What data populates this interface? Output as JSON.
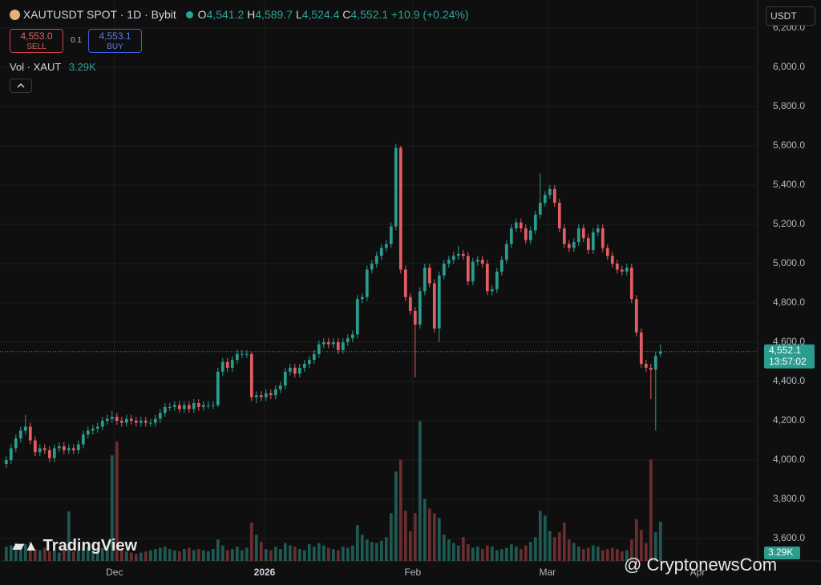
{
  "header": {
    "symbol": "XAUTUSDT SPOT · 1D · Bybit",
    "ohlc": [
      {
        "key": "O",
        "label": "4,541.2"
      },
      {
        "key": "H",
        "label": "4,589.7"
      },
      {
        "key": "L",
        "label": "4,524.4"
      },
      {
        "key": "C",
        "label": "4,552.1"
      }
    ],
    "change": "+10.9 (+0.24%)",
    "sell_price": "4,553.0",
    "sell": "SELL",
    "spread": "0.1",
    "buy_price": "4,553.1",
    "buy": "BUY",
    "volume_title": "Vol · XAUT",
    "currency": "USDT",
    "timer": "13:57:02",
    "watermarks": [
      "TradingView",
      "@ CryptonewsCom"
    ]
  },
  "chart_data": {
    "type": "candlestick",
    "categories": [
      null,
      null,
      null,
      null,
      null,
      null,
      null,
      null,
      null,
      null,
      null,
      null,
      null,
      null,
      null,
      null,
      null,
      null,
      null,
      null,
      null,
      null,
      null,
      null,
      null,
      null,
      null,
      null,
      null,
      null,
      null,
      null,
      null,
      null,
      null,
      null,
      null,
      null,
      null,
      null,
      null,
      null,
      null,
      null,
      null,
      null,
      null,
      null,
      null,
      null,
      null,
      null,
      null,
      null,
      null,
      null,
      null,
      null,
      null,
      null,
      null,
      null,
      null,
      null,
      null,
      null,
      null,
      null,
      null,
      null,
      null,
      null,
      null,
      null,
      null,
      null,
      null,
      null,
      null,
      null,
      null,
      null,
      null,
      null,
      null,
      null,
      null,
      null,
      null,
      null,
      null,
      null,
      null,
      null,
      null,
      null,
      null,
      null,
      null,
      null,
      null,
      null,
      null,
      null,
      null,
      null,
      null,
      null,
      null,
      null,
      null,
      null,
      null,
      null,
      null,
      null,
      null,
      null,
      null,
      null,
      null,
      null,
      null,
      null,
      null,
      null,
      null,
      null,
      null,
      null,
      null,
      null,
      null,
      null,
      null,
      null,
      null
    ],
    "open": [
      3980,
      4000,
      4060,
      4110,
      4150,
      4170,
      4100,
      4040,
      4060,
      4050,
      4010,
      4060,
      4070,
      4050,
      4060,
      4050,
      4080,
      4130,
      4150,
      4160,
      4170,
      4200,
      4210,
      4220,
      4200,
      4190,
      4210,
      4200,
      4190,
      4200,
      4190,
      4190,
      4210,
      4240,
      4270,
      4270,
      4280,
      4260,
      4280,
      4260,
      4290,
      4270,
      4280,
      4280,
      4280,
      4450,
      4500,
      4470,
      4510,
      4540,
      4540,
      4540,
      4320,
      4330,
      4320,
      4340,
      4330,
      4360,
      4380,
      4450,
      4470,
      4440,
      4470,
      4490,
      4510,
      4540,
      4590,
      4600,
      4590,
      4600,
      4560,
      4600,
      4620,
      4640,
      4820,
      4830,
      4970,
      5000,
      5040,
      5080,
      5100,
      5190,
      5590,
      4970,
      4830,
      4760,
      4690,
      4860,
      4980,
      4900,
      4670,
      4940,
      5000,
      5020,
      5040,
      5050,
      5040,
      4910,
      5010,
      5020,
      5000,
      4860,
      4870,
      4960,
      5020,
      5100,
      5180,
      5210,
      5180,
      5120,
      5170,
      5250,
      5310,
      5350,
      5380,
      5310,
      5180,
      5100,
      5080,
      5110,
      5180,
      5130,
      5070,
      5160,
      5180,
      5080,
      5040,
      5000,
      4970,
      4960,
      4980,
      4820,
      4650,
      4490,
      4470,
      4460,
      4541.2
    ],
    "high": [
      4020,
      4080,
      4130,
      4170,
      4230,
      4190,
      4120,
      4080,
      4080,
      4070,
      4080,
      4090,
      4090,
      4080,
      4080,
      4100,
      4150,
      4170,
      4180,
      4190,
      4220,
      4230,
      4250,
      4240,
      4220,
      4230,
      4230,
      4220,
      4220,
      4220,
      4210,
      4230,
      4260,
      4290,
      4290,
      4300,
      4300,
      4300,
      4300,
      4310,
      4310,
      4300,
      4300,
      4300,
      4470,
      4520,
      4520,
      4530,
      4560,
      4560,
      4560,
      4550,
      4350,
      4350,
      4360,
      4360,
      4380,
      4400,
      4470,
      4490,
      4490,
      4490,
      4510,
      4530,
      4560,
      4610,
      4620,
      4620,
      4620,
      4620,
      4620,
      4640,
      4660,
      4840,
      4850,
      4990,
      5020,
      5060,
      5100,
      5120,
      5210,
      5610,
      5600,
      4990,
      4850,
      4780,
      4880,
      5000,
      5000,
      4920,
      4960,
      5020,
      5040,
      5060,
      5090,
      5070,
      5060,
      5030,
      5040,
      5040,
      5020,
      4890,
      4980,
      5040,
      5120,
      5200,
      5230,
      5230,
      5200,
      5190,
      5270,
      5460,
      5370,
      5400,
      5400,
      5330,
      5200,
      5120,
      5130,
      5200,
      5200,
      5150,
      5180,
      5200,
      5200,
      5100,
      5060,
      5020,
      4990,
      5000,
      5000,
      4840,
      4670,
      4510,
      4490,
      4550,
      4589.7
    ],
    "low": [
      3960,
      3980,
      4040,
      4090,
      4130,
      4080,
      4020,
      4020,
      4030,
      3990,
      3990,
      4040,
      4030,
      4030,
      4030,
      4030,
      4060,
      4110,
      4130,
      4140,
      4150,
      4180,
      4190,
      4180,
      4170,
      4170,
      4180,
      4170,
      4170,
      4170,
      4170,
      4170,
      4190,
      4220,
      4250,
      4250,
      4240,
      4240,
      4240,
      4240,
      4250,
      4250,
      4260,
      4260,
      4270,
      4430,
      4450,
      4450,
      4490,
      4520,
      4520,
      4300,
      4290,
      4300,
      4300,
      4310,
      4310,
      4340,
      4360,
      4430,
      4420,
      4420,
      4450,
      4470,
      4490,
      4520,
      4570,
      4570,
      4570,
      4540,
      4540,
      4580,
      4600,
      4620,
      4800,
      4810,
      4950,
      4980,
      5020,
      5060,
      5080,
      5170,
      4950,
      4810,
      4740,
      4420,
      4670,
      4840,
      4880,
      4650,
      4600,
      4920,
      4980,
      5000,
      5020,
      5020,
      4890,
      4890,
      4990,
      4980,
      4840,
      4840,
      4850,
      4940,
      5000,
      5080,
      5160,
      5160,
      5100,
      5100,
      5150,
      5230,
      5290,
      5330,
      5290,
      5160,
      5080,
      5060,
      5060,
      5090,
      5110,
      5050,
      5050,
      5140,
      5060,
      5020,
      4980,
      4950,
      4940,
      4940,
      4800,
      4630,
      4470,
      4450,
      4310,
      4150,
      4524.4
    ],
    "close": [
      4000,
      4060,
      4110,
      4150,
      4170,
      4100,
      4040,
      4060,
      4050,
      4010,
      4060,
      4070,
      4050,
      4060,
      4050,
      4080,
      4130,
      4150,
      4160,
      4170,
      4200,
      4210,
      4220,
      4200,
      4190,
      4210,
      4200,
      4190,
      4200,
      4190,
      4190,
      4210,
      4240,
      4270,
      4270,
      4280,
      4260,
      4280,
      4260,
      4290,
      4270,
      4280,
      4280,
      4280,
      4450,
      4500,
      4470,
      4510,
      4540,
      4540,
      4540,
      4320,
      4330,
      4320,
      4340,
      4330,
      4360,
      4380,
      4450,
      4470,
      4440,
      4470,
      4490,
      4510,
      4540,
      4590,
      4600,
      4590,
      4600,
      4560,
      4600,
      4620,
      4640,
      4820,
      4830,
      4970,
      5000,
      5040,
      5080,
      5100,
      5190,
      5590,
      4970,
      4830,
      4760,
      4690,
      4860,
      4980,
      4900,
      4670,
      4940,
      5000,
      5020,
      5040,
      5050,
      5040,
      4910,
      5010,
      5020,
      5000,
      4860,
      4870,
      4960,
      5020,
      5100,
      5180,
      5210,
      5180,
      5120,
      5170,
      5250,
      5310,
      5350,
      5380,
      5310,
      5180,
      5100,
      5080,
      5110,
      5180,
      5130,
      5070,
      5160,
      5180,
      5080,
      5040,
      5000,
      4970,
      4960,
      4980,
      4820,
      4650,
      4490,
      4470,
      4460,
      4530,
      4552.1
    ],
    "volume": [
      1200,
      1300,
      1500,
      1100,
      1400,
      1600,
      1000,
      900,
      1100,
      800,
      900,
      700,
      1000,
      4150,
      800,
      900,
      1100,
      1200,
      900,
      1000,
      1100,
      1300,
      8850,
      10000,
      900,
      800,
      700,
      600,
      700,
      800,
      900,
      1000,
      1100,
      1200,
      1000,
      900,
      800,
      1000,
      1100,
      900,
      1000,
      900,
      800,
      1000,
      1800,
      1300,
      900,
      1000,
      1200,
      900,
      1100,
      3200,
      2200,
      1600,
      1000,
      900,
      1200,
      1000,
      1500,
      1300,
      1200,
      1000,
      900,
      1400,
      1200,
      1500,
      1300,
      1100,
      1000,
      900,
      1200,
      1100,
      1300,
      3000,
      2200,
      1800,
      1600,
      1500,
      1700,
      2000,
      4000,
      7500,
      8500,
      4200,
      2500,
      4000,
      11700,
      5200,
      4400,
      4000,
      3600,
      2200,
      1800,
      1500,
      1300,
      2000,
      1400,
      1100,
      1200,
      1000,
      1300,
      1200,
      900,
      1000,
      1100,
      1400,
      1200,
      1000,
      1300,
      1600,
      2000,
      4200,
      3800,
      2500,
      2000,
      2400,
      3200,
      1800,
      1500,
      1200,
      1000,
      1100,
      1300,
      1200,
      900,
      1000,
      1100,
      1000,
      800,
      900,
      1800,
      3500,
      2600,
      1500,
      8500,
      2400,
      3290
    ],
    "volume_label": "3.29K",
    "last_price_label": "4,552.1",
    "xlim": [
      -1.3,
      156.2
    ],
    "xticks": [
      {
        "value": 22.5,
        "label": "Dec"
      },
      {
        "value": 53.7,
        "label": "2026"
      },
      {
        "value": 84.5,
        "label": "Feb"
      },
      {
        "value": 112.5,
        "label": "Mar"
      },
      {
        "value": 143.7,
        "label": "Apr"
      }
    ],
    "ylim": [
      3486,
      6343
    ],
    "yticks": [
      {
        "value": 3600,
        "label": "3,600.0"
      },
      {
        "value": 3800,
        "label": "3,800.0"
      },
      {
        "value": 4000,
        "label": "4,000.0"
      },
      {
        "value": 4200,
        "label": "4,200.0"
      },
      {
        "value": 4400,
        "label": "4,400.0"
      },
      {
        "value": 4600,
        "label": "4,600.0"
      },
      {
        "value": 4800,
        "label": "4,800.0"
      },
      {
        "value": 5000,
        "label": "5,000.0"
      },
      {
        "value": 5200,
        "label": "5,200.0"
      },
      {
        "value": 5400,
        "label": "5,400.0"
      },
      {
        "value": 5600,
        "label": "5,600.0"
      },
      {
        "value": 5800,
        "label": "5,800.0"
      },
      {
        "value": 6000,
        "label": "6,000.0"
      },
      {
        "value": 6200,
        "label": "6,200.0"
      }
    ],
    "volume_lim": [
      0,
      47000
    ],
    "grid": true,
    "up_color": "#2a9d8f",
    "down_color": "#e35d62",
    "volume_up_color": "#1e5a53",
    "volume_down_color": "#6a2d30"
  }
}
